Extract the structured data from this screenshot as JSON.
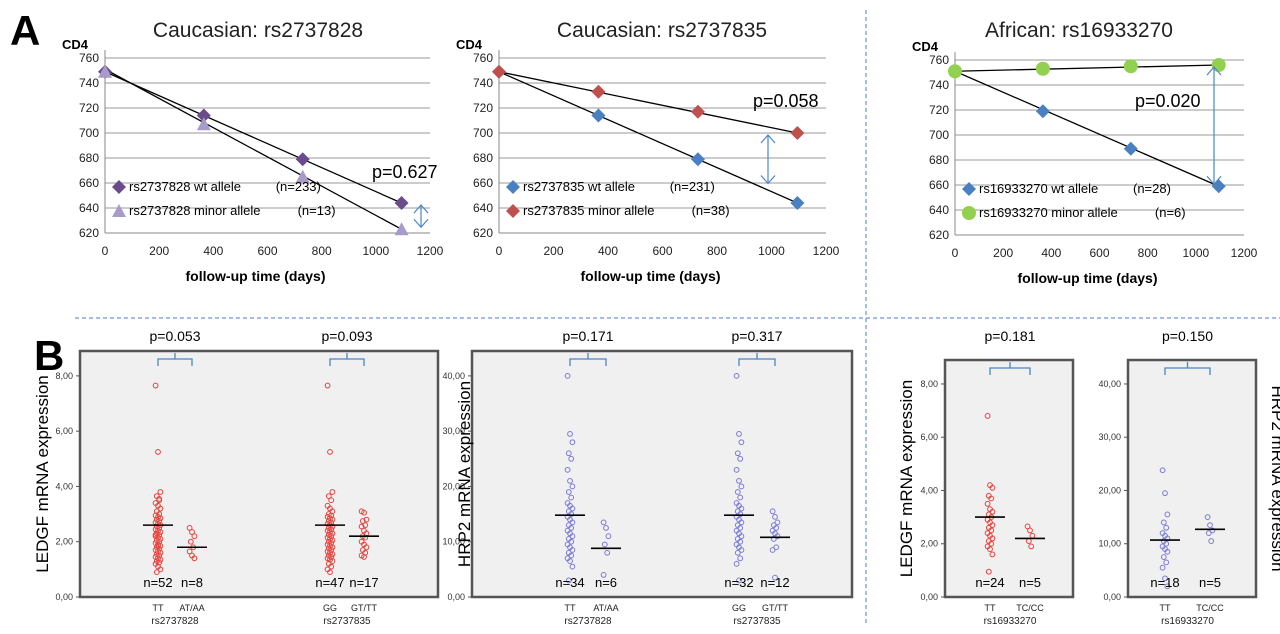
{
  "panel_labels": {
    "a": "A",
    "b": "B"
  },
  "colors": {
    "wt_purple": "#6a4c8c",
    "minor_lavender": "#a99bc9",
    "wt_blue": "#4a7fc1",
    "minor_red": "#c0504d",
    "minor_green": "#92d050",
    "arrow": "#4a86c8",
    "scatter_red": "#e8413b",
    "scatter_blue": "#7a7ad8",
    "divider": "#4a7fc8",
    "plot_bg": "#f0f0f0"
  },
  "chart_data": [
    {
      "type": "line",
      "title": "Caucasian: rs2737828",
      "ylabel": "CD4",
      "xlabel": "follow-up time (days)",
      "xlim": [
        0,
        1200
      ],
      "ylim": [
        620,
        760
      ],
      "xticks": [
        "0",
        "200",
        "400",
        "600",
        "800",
        "1000",
        "1200"
      ],
      "yticks": [
        "620",
        "640",
        "660",
        "680",
        "700",
        "720",
        "740",
        "760"
      ],
      "grid": "horizontal",
      "legend_position": "bottom-left",
      "annotation": "p=0.627",
      "arrow_between": [
        644,
        623
      ],
      "series": [
        {
          "name": "rs2737828 wt allele",
          "n_label": "(n=233)",
          "marker": "diamond",
          "color": "#6a4c8c",
          "x": [
            0,
            365,
            730,
            1095
          ],
          "y": [
            749,
            714,
            679,
            644
          ],
          "fit": [
            [
              0,
              749
            ],
            [
              1095,
              644
            ]
          ]
        },
        {
          "name": "rs2737828 minor allele",
          "n_label": "(n=13)",
          "marker": "triangle",
          "color": "#a99bc9",
          "x": [
            0,
            365,
            730,
            1095
          ],
          "y": [
            749,
            707,
            665,
            623
          ],
          "fit": [
            [
              0,
              751
            ],
            [
              1095,
              623
            ]
          ]
        }
      ]
    },
    {
      "type": "line",
      "title": "Caucasian: rs2737835",
      "ylabel": "CD4",
      "xlabel": "follow-up time (days)",
      "xlim": [
        0,
        1200
      ],
      "ylim": [
        620,
        760
      ],
      "xticks": [
        "0",
        "200",
        "400",
        "600",
        "800",
        "1000",
        "1200"
      ],
      "yticks": [
        "620",
        "640",
        "660",
        "680",
        "700",
        "720",
        "740",
        "760"
      ],
      "grid": "horizontal",
      "legend_position": "bottom-left",
      "annotation": "p=0.058",
      "arrow_between": [
        700,
        658
      ],
      "series": [
        {
          "name": "rs2737835 wt allele",
          "n_label": "(n=231)",
          "marker": "diamond",
          "color": "#4a7fc1",
          "x": [
            0,
            365,
            730,
            1095
          ],
          "y": [
            749,
            714,
            679,
            644
          ],
          "fit": [
            [
              0,
              749
            ],
            [
              1095,
              644
            ]
          ]
        },
        {
          "name": "rs2737835 minor allele",
          "n_label": "(n=38)",
          "marker": "diamond",
          "color": "#c0504d",
          "x": [
            0,
            365,
            730,
            1095
          ],
          "y": [
            749,
            733,
            717,
            700
          ],
          "fit": [
            [
              0,
              749
            ],
            [
              1095,
              700
            ]
          ]
        }
      ]
    },
    {
      "type": "line",
      "title": "African: rs16933270",
      "ylabel": "CD4",
      "xlabel": "follow-up time (days)",
      "xlim": [
        0,
        1200
      ],
      "ylim": [
        620,
        760
      ],
      "xticks": [
        "0",
        "200",
        "400",
        "600",
        "800",
        "1000",
        "1200"
      ],
      "yticks": [
        "620",
        "640",
        "660",
        "680",
        "700",
        "720",
        "740",
        "760"
      ],
      "grid": "horizontal",
      "legend_position": "bottom-left",
      "annotation": "p=0.020",
      "arrow_between": [
        756,
        659
      ],
      "series": [
        {
          "name": "rs16933270 wt allele",
          "n_label": "(n=28)",
          "marker": "diamond",
          "color": "#4a7fc1",
          "x": [
            0,
            365,
            730,
            1095
          ],
          "y": [
            751,
            719,
            689,
            659
          ],
          "fit": [
            [
              0,
              751
            ],
            [
              1095,
              659
            ]
          ]
        },
        {
          "name": "rs16933270 minor allele",
          "n_label": "(n=6)",
          "marker": "circle",
          "color": "#92d050",
          "x": [
            0,
            365,
            730,
            1095
          ],
          "y": [
            751,
            753,
            755,
            756
          ],
          "fit": [
            [
              0,
              751
            ],
            [
              1095,
              756
            ]
          ]
        }
      ]
    },
    {
      "type": "scatter",
      "ylabel": "LEDGF mRNA  expression",
      "ylim": [
        0,
        8.9
      ],
      "yticks": [
        "0,00",
        "2,00",
        "4,00",
        "6,00",
        "8,00"
      ],
      "color": "#e8413b",
      "groups": [
        {
          "label": "TT",
          "snp": "rs2737828",
          "n_label": "n=52",
          "mean": 2.6,
          "values": [
            7.65,
            5.25,
            3.8,
            3.65,
            3.5,
            3.4,
            3.3,
            3.2,
            3.1,
            3.0,
            2.95,
            2.9,
            2.85,
            2.8,
            2.75,
            2.7,
            2.65,
            2.6,
            2.55,
            2.5,
            2.45,
            2.4,
            2.35,
            2.3,
            2.25,
            2.2,
            2.15,
            2.1,
            2.05,
            2.0,
            1.95,
            1.9,
            1.85,
            1.8,
            1.75,
            1.7,
            1.65,
            1.6,
            1.55,
            1.5,
            1.45,
            1.4,
            1.35,
            1.3,
            1.25,
            1.2,
            1.1,
            1.0,
            0.9,
            3.55,
            2.25,
            1.85
          ]
        },
        {
          "label": "AT/AA",
          "snp": "rs2737828",
          "n_label": "n=8",
          "mean": 1.8,
          "values": [
            2.5,
            2.35,
            2.2,
            2.0,
            1.8,
            1.65,
            1.5,
            1.4
          ]
        },
        {
          "label": "GG",
          "snp": "rs2737835",
          "n_label": "n=47",
          "mean": 2.6,
          "values": [
            7.65,
            5.25,
            3.8,
            3.65,
            3.5,
            3.3,
            3.2,
            3.1,
            3.0,
            2.95,
            2.9,
            2.85,
            2.8,
            2.75,
            2.7,
            2.65,
            2.6,
            2.55,
            2.5,
            2.45,
            2.4,
            2.35,
            2.3,
            2.25,
            2.2,
            2.15,
            2.1,
            2.05,
            2.0,
            1.95,
            1.9,
            1.85,
            1.8,
            1.75,
            1.7,
            1.65,
            1.6,
            1.55,
            1.5,
            1.45,
            1.4,
            1.35,
            1.3,
            1.2,
            1.1,
            1.0,
            0.9
          ]
        },
        {
          "label": "GT/TT",
          "snp": "rs2737835",
          "n_label": "n=17",
          "mean": 2.2,
          "values": [
            3.1,
            3.05,
            2.8,
            2.75,
            2.6,
            2.55,
            2.4,
            2.3,
            2.2,
            2.15,
            2.0,
            1.9,
            1.8,
            1.7,
            1.6,
            1.5,
            1.45
          ]
        }
      ],
      "pvalues": [
        "p=0.053",
        "p=0.093"
      ]
    },
    {
      "type": "scatter",
      "ylabel": "HRP2  mRNA  expression",
      "ylim": [
        0,
        44.5
      ],
      "yticks": [
        "0,00",
        "10,00",
        "20,00",
        "30,00",
        "40,00"
      ],
      "color": "#7a7ad8",
      "groups": [
        {
          "label": "TT",
          "snp": "rs2737828",
          "n_label": "n=34",
          "mean": 14.8,
          "values": [
            40,
            29.5,
            28,
            26,
            25,
            23,
            21,
            20,
            19,
            18,
            17,
            16.5,
            16,
            15.5,
            15,
            14.5,
            14,
            13.5,
            13,
            12.5,
            12,
            11.5,
            11,
            10.5,
            10,
            9.5,
            9,
            8.5,
            8,
            7.5,
            7,
            6.5,
            5.5,
            3
          ]
        },
        {
          "label": "AT/AA",
          "snp": "rs2737828",
          "n_label": "n=6",
          "mean": 8.8,
          "values": [
            13.5,
            12.5,
            11,
            9.5,
            8,
            4
          ]
        },
        {
          "label": "GG",
          "snp": "rs2737835",
          "n_label": "n=32",
          "mean": 14.8,
          "values": [
            40,
            29.5,
            28,
            26,
            25,
            23,
            21,
            20,
            19,
            18,
            17,
            16.5,
            16,
            15.5,
            15,
            14.5,
            14,
            13.5,
            13,
            12.5,
            12,
            11.5,
            11,
            10.5,
            10,
            9.5,
            9,
            8.5,
            8,
            7,
            6,
            3
          ]
        },
        {
          "label": "GT/TT",
          "snp": "rs2737835",
          "n_label": "n=12",
          "mean": 10.8,
          "values": [
            15.5,
            14.5,
            13.5,
            13,
            12.5,
            12,
            11.5,
            11,
            10.5,
            9,
            8.5,
            3.5
          ]
        }
      ],
      "pvalues": [
        "p=0.171",
        "p=0.317"
      ]
    },
    {
      "type": "scatter",
      "ylabel": "LEDGF mRNA  expression",
      "ylim": [
        0,
        8.9
      ],
      "yticks": [
        "0,00",
        "2,00",
        "4,00",
        "6,00",
        "8,00"
      ],
      "color": "#e8413b",
      "groups": [
        {
          "label": "TT",
          "snp": "rs16933270",
          "n_label": "n=24",
          "mean": 3.0,
          "values": [
            6.8,
            4.2,
            4.1,
            3.8,
            3.7,
            3.5,
            3.3,
            3.2,
            3.1,
            3.0,
            2.9,
            2.8,
            2.7,
            2.6,
            2.5,
            2.4,
            2.3,
            2.2,
            2.1,
            2.0,
            1.9,
            1.8,
            1.6,
            0.95
          ]
        },
        {
          "label": "TC/CC",
          "snp": "rs16933270",
          "n_label": "n=5",
          "mean": 2.2,
          "values": [
            2.65,
            2.5,
            2.3,
            2.1,
            1.9
          ]
        }
      ],
      "pvalues": [
        "p=0.181"
      ]
    },
    {
      "type": "scatter",
      "ylabel": "HRP2  mRNA  expression",
      "ylim": [
        0,
        44.5
      ],
      "yticks": [
        "0,00",
        "10,00",
        "20,00",
        "30,00",
        "40,00"
      ],
      "color": "#7a7ad8",
      "groups": [
        {
          "label": "TT",
          "snp": "rs16933270",
          "n_label": "n=18",
          "mean": 10.7,
          "values": [
            23.8,
            19.5,
            15.5,
            14,
            13,
            12,
            11.5,
            11,
            10.5,
            10,
            9.5,
            9,
            8.5,
            7.5,
            6.5,
            5.5,
            3.5,
            2
          ]
        },
        {
          "label": "TC/CC",
          "snp": "rs16933270",
          "n_label": "n=5",
          "mean": 12.7,
          "values": [
            15,
            13.5,
            12.5,
            12,
            10.5
          ]
        }
      ],
      "pvalues": [
        "p=0.150"
      ]
    }
  ]
}
